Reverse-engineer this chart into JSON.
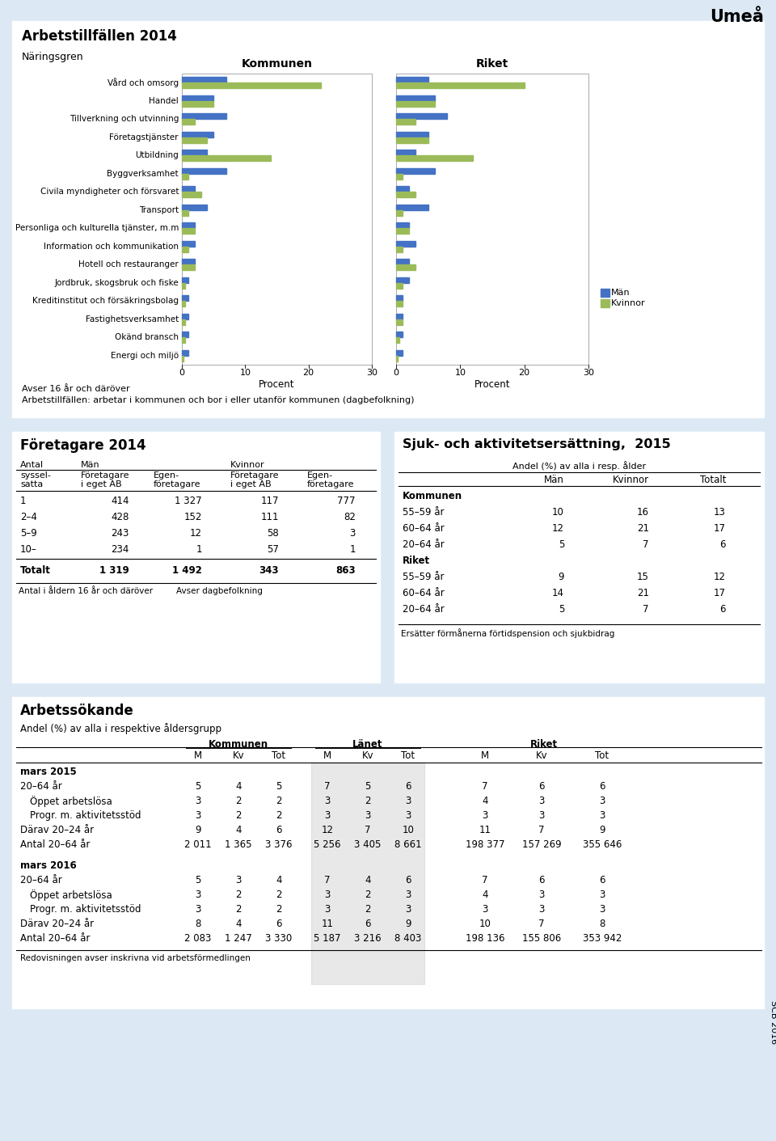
{
  "title_main": "Umeå",
  "bg_color": "#dce9f5",
  "section1_title": "Arbetstillfällen 2014",
  "naringsgren_label": "Näringsgren",
  "kommunen_label": "Kommunen",
  "riket_label": "Riket",
  "categories": [
    "Vård och omsorg",
    "Handel",
    "Tillverkning och utvinning",
    "Företagstjänster",
    "Utbildning",
    "Byggverksamhet",
    "Civila myndigheter och försvaret",
    "Transport",
    "Personliga och kulturella tjänster, m.m",
    "Information och kommunikation",
    "Hotell och restauranger",
    "Jordbruk, skogsbruk och fiske",
    "Kreditinstitut och försäkringsbolag",
    "Fastighetsverksamhet",
    "Okänd bransch",
    "Energi och miljö"
  ],
  "kommunen_man": [
    7,
    5,
    7,
    5,
    4,
    7,
    2,
    4,
    2,
    2,
    2,
    1,
    1,
    1,
    1,
    1
  ],
  "kommunen_kvinnor": [
    22,
    5,
    2,
    4,
    14,
    1,
    3,
    1,
    2,
    1,
    2,
    0.5,
    0.5,
    0.5,
    0.5,
    0.2
  ],
  "riket_man": [
    5,
    6,
    8,
    5,
    3,
    6,
    2,
    5,
    2,
    3,
    2,
    2,
    1,
    1,
    1,
    1
  ],
  "riket_kvinnor": [
    20,
    6,
    3,
    5,
    12,
    1,
    3,
    1,
    2,
    1,
    3,
    1,
    1,
    1,
    0.5,
    0.3
  ],
  "man_color": "#4472c4",
  "kvinnor_color": "#9bbb59",
  "x_max": 30,
  "procent_label": "Procent",
  "footnote1": "Avser 16 år och däröver",
  "footnote2": "Arbetstillfällen: arbetar i kommunen och bor i eller utanför kommunen (dagbefolkning)",
  "section2_title": "Företagare 2014",
  "section3_title": "Sjuk- och aktivitetsersättning,  2015",
  "företagare_rows": [
    [
      "1",
      "414",
      "1 327",
      "117",
      "777"
    ],
    [
      "2–4",
      "428",
      "152",
      "111",
      "82"
    ],
    [
      "5–9",
      "243",
      "12",
      "58",
      "3"
    ],
    [
      "10–",
      "234",
      "1",
      "57",
      "1"
    ],
    [
      "Totalt",
      "1 319",
      "1 492",
      "343",
      "863"
    ]
  ],
  "företagare_footnote1": "Antal i åldern 16 år och däröver",
  "företagare_footnote2": "Avser dagbefolkning",
  "sjuk_subtitle": "Andel (%) av alla i resp. ålder",
  "sjuk_rows": [
    [
      "Kommunen",
      "",
      "",
      ""
    ],
    [
      "55–59 år",
      "10",
      "16",
      "13"
    ],
    [
      "60–64 år",
      "12",
      "21",
      "17"
    ],
    [
      "20–64 år",
      "5",
      "7",
      "6"
    ],
    [
      "Riket",
      "",
      "",
      ""
    ],
    [
      "55–59 år",
      "9",
      "15",
      "12"
    ],
    [
      "60–64 år",
      "14",
      "21",
      "17"
    ],
    [
      "20–64 år",
      "5",
      "7",
      "6"
    ]
  ],
  "sjuk_footnote": "Ersätter förmånerna förtidspension och sjukbidrag",
  "section4_title": "Arbetssökande",
  "arbets_subtitle": "Andel (%) av alla i respektive åldersgrupp",
  "arbets_2015_rows": [
    [
      "20–64 år",
      "5",
      "4",
      "5",
      "7",
      "5",
      "6",
      "7",
      "6",
      "6"
    ],
    [
      "  Öppet arbetslösa",
      "3",
      "2",
      "2",
      "3",
      "2",
      "3",
      "4",
      "3",
      "3"
    ],
    [
      "  Progr. m. aktivitetsstöd",
      "3",
      "2",
      "2",
      "3",
      "3",
      "3",
      "3",
      "3",
      "3"
    ],
    [
      "Därav 20–24 år",
      "9",
      "4",
      "6",
      "12",
      "7",
      "10",
      "11",
      "7",
      "9"
    ],
    [
      "Antal 20–64 år",
      "2 011",
      "1 365",
      "3 376",
      "5 256",
      "3 405",
      "8 661",
      "198 377",
      "157 269",
      "355 646"
    ]
  ],
  "arbets_2016_rows": [
    [
      "20–64 år",
      "5",
      "3",
      "4",
      "7",
      "4",
      "6",
      "7",
      "6",
      "6"
    ],
    [
      "  Öppet arbetslösa",
      "3",
      "2",
      "2",
      "3",
      "2",
      "3",
      "4",
      "3",
      "3"
    ],
    [
      "  Progr. m. aktivitetsstöd",
      "3",
      "2",
      "2",
      "3",
      "2",
      "3",
      "3",
      "3",
      "3"
    ],
    [
      "Därav 20–24 år",
      "8",
      "4",
      "6",
      "11",
      "6",
      "9",
      "10",
      "7",
      "8"
    ],
    [
      "Antal 20–64 år",
      "2 083",
      "1 247",
      "3 330",
      "5 187",
      "3 216",
      "8 403",
      "198 136",
      "155 806",
      "353 942"
    ]
  ],
  "arbets_footnote": "Redovisningen avser inskrivna vid arbetsförmedlingen",
  "scb_label": "SCB 2016"
}
